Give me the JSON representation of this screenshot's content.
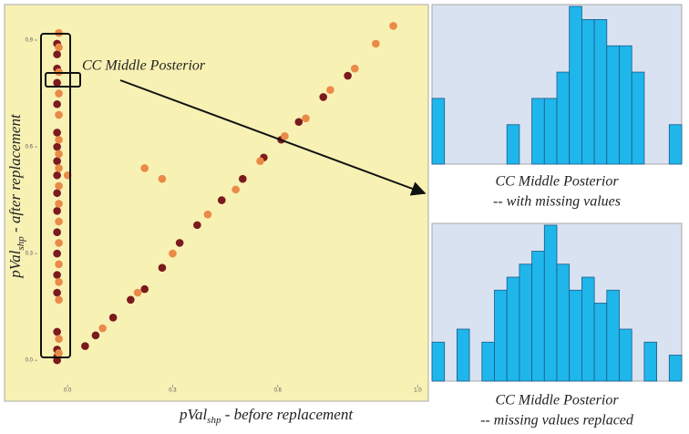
{
  "chart_data": [
    {
      "type": "scatter",
      "xlabel": {
        "main": "pVal",
        "sub": "shp",
        "rest": " - before replacement"
      },
      "ylabel": {
        "main": "pVal",
        "sub": "shp",
        "rest": " - after replacement"
      },
      "annotation": "CC Middle Posterior",
      "xlim": [
        -0.18,
        1.03
      ],
      "ylim": [
        -0.115,
        1.0
      ],
      "xticks": [
        {
          "value": 0,
          "label": "0.0"
        },
        0.3,
        0.6,
        {
          "value": 1,
          "label": "1.0"
        }
      ],
      "yticks": [
        {
          "value": 0,
          "label": "0.0"
        },
        0.3,
        0.6,
        0.9
      ],
      "background": "#f8f1b4",
      "series": [
        {
          "color": "#7b1a1e",
          "x": [
            -0.03,
            -0.03,
            -0.03,
            -0.03,
            -0.03,
            -0.03,
            -0.03,
            -0.03,
            -0.03,
            -0.03,
            -0.03,
            -0.03,
            -0.03,
            -0.03,
            -0.03,
            -0.03,
            -0.03,
            -0.03,
            -0.03,
            0.05,
            0.08,
            0.13,
            0.18,
            0.22,
            0.27,
            0.32,
            0.37,
            0.44,
            0.5,
            0.56,
            0.61,
            0.66,
            0.73,
            0.8
          ],
          "y": [
            0.89,
            0.86,
            0.82,
            0.78,
            0.72,
            0.64,
            0.6,
            0.56,
            0.52,
            0.47,
            0.42,
            0.36,
            0.3,
            0.24,
            0.19,
            0.08,
            0.03,
            0.01,
            0.0,
            0.04,
            0.07,
            0.12,
            0.17,
            0.2,
            0.26,
            0.33,
            0.38,
            0.45,
            0.51,
            0.57,
            0.62,
            0.67,
            0.74,
            0.8
          ]
        },
        {
          "color": "#ea8a48",
          "x": [
            -0.025,
            -0.025,
            -0.025,
            -0.025,
            -0.025,
            -0.025,
            -0.025,
            -0.025,
            -0.025,
            -0.025,
            -0.025,
            -0.025,
            -0.025,
            -0.025,
            -0.025,
            -0.025,
            -0.025,
            0.22,
            0.27,
            0.0,
            0.1,
            0.2,
            0.3,
            0.4,
            0.48,
            0.55,
            0.62,
            0.68,
            0.75,
            0.82,
            0.88,
            0.93
          ],
          "y": [
            0.92,
            0.88,
            0.81,
            0.75,
            0.69,
            0.62,
            0.58,
            0.54,
            0.49,
            0.44,
            0.39,
            0.33,
            0.27,
            0.22,
            0.17,
            0.06,
            0.02,
            0.54,
            0.51,
            0.52,
            0.09,
            0.19,
            0.3,
            0.41,
            0.48,
            0.56,
            0.63,
            0.68,
            0.76,
            0.82,
            0.89,
            0.94
          ]
        }
      ]
    },
    {
      "type": "bar",
      "caption": [
        "CC Middle Posterior",
        "-- with missing values"
      ],
      "categories": [
        null,
        null,
        null,
        null,
        null,
        null,
        null,
        null,
        null,
        null,
        null,
        null,
        null,
        null,
        null,
        null,
        null,
        null,
        null,
        null
      ],
      "values": [
        5,
        0,
        0,
        0,
        0,
        0,
        3,
        0,
        5,
        5,
        7,
        12,
        11,
        11,
        9,
        9,
        7,
        0,
        0,
        3
      ],
      "ylim": [
        0,
        12
      ],
      "color": "#1fb6ec",
      "background": "#d9e2f1"
    },
    {
      "type": "bar",
      "caption": [
        "CC Middle Posterior",
        "-- missing values replaced"
      ],
      "categories": [
        null,
        null,
        null,
        null,
        null,
        null,
        null,
        null,
        null,
        null,
        null,
        null,
        null,
        null,
        null,
        null,
        null,
        null,
        null,
        null
      ],
      "values": [
        3,
        0,
        4,
        0,
        3,
        7,
        8,
        9,
        10,
        12,
        9,
        7,
        8,
        6,
        7,
        4,
        0,
        3,
        0,
        2
      ],
      "ylim": [
        0,
        12
      ],
      "color": "#1fb6ec",
      "background": "#d9e2f1"
    }
  ]
}
